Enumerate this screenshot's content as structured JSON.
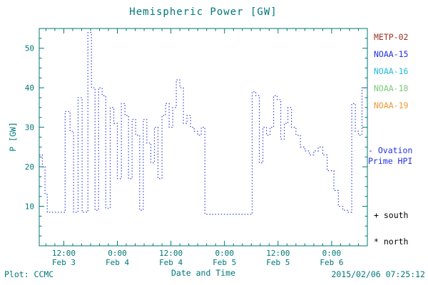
{
  "colors": {
    "background": "#ffffff",
    "axis": "#007777",
    "line": "#3344dd",
    "black": "#000000"
  },
  "legend": {
    "satellites": [
      {
        "label": "METP-02",
        "color": "#993322"
      },
      {
        "label": "NOAA-15",
        "color": "#2233dd"
      },
      {
        "label": "NOAA-16",
        "color": "#22bbdd"
      },
      {
        "label": "NOAA-18",
        "color": "#77cc77"
      },
      {
        "label": "NOAA-19",
        "color": "#ee9933"
      }
    ],
    "ovation": {
      "line1": "- Ovation",
      "line2": "Prime HPI",
      "color": "#2233dd"
    },
    "south_marker": "+ south",
    "north_marker": "* north"
  },
  "footer": {
    "credit": "Plot: CCMC",
    "timestamp": "2015/02/06 07:25:12"
  },
  "chart_data": {
    "type": "line",
    "style": "dotted-step",
    "title": "Hemispheric Power [GW]",
    "xlabel": "Date and Time",
    "ylabel": "P [GW]",
    "ylim": [
      0,
      55
    ],
    "yticks": [
      10,
      20,
      30,
      40,
      50
    ],
    "xlim": [
      6.5,
      80
    ],
    "x_unit": "hours since 2015-02-03 00:00 UT",
    "xticks": [
      {
        "hour": 12,
        "time": "12:00",
        "date": "Feb 3"
      },
      {
        "hour": 24,
        "time": "0:00",
        "date": "Feb 4"
      },
      {
        "hour": 36,
        "time": "12:00",
        "date": "Feb 4"
      },
      {
        "hour": 48,
        "time": "0:00",
        "date": "Feb 5"
      },
      {
        "hour": 60,
        "time": "12:00",
        "date": "Feb 5"
      },
      {
        "hour": 72,
        "time": "0:00",
        "date": "Feb 6"
      }
    ],
    "grid": false,
    "legend_position": "right",
    "series": [
      {
        "name": "Ovation Prime HPI",
        "color": "#3344dd",
        "points": [
          [
            6.5,
            23
          ],
          [
            7.2,
            20
          ],
          [
            7.8,
            13
          ],
          [
            8.3,
            8.5
          ],
          [
            12.3,
            34
          ],
          [
            13.4,
            29
          ],
          [
            14.2,
            8.5
          ],
          [
            15.2,
            37.5
          ],
          [
            16.1,
            8.5
          ],
          [
            17.4,
            54
          ],
          [
            18.2,
            40
          ],
          [
            19.0,
            9
          ],
          [
            19.8,
            40
          ],
          [
            20.6,
            38
          ],
          [
            21.4,
            9.5
          ],
          [
            22.4,
            35
          ],
          [
            23.2,
            31
          ],
          [
            24.0,
            17
          ],
          [
            24.9,
            36
          ],
          [
            25.7,
            33
          ],
          [
            26.5,
            17
          ],
          [
            27.3,
            32
          ],
          [
            28.1,
            28
          ],
          [
            29.0,
            9
          ],
          [
            29.8,
            32
          ],
          [
            30.6,
            26
          ],
          [
            31.5,
            21
          ],
          [
            32.3,
            30
          ],
          [
            33.1,
            17
          ],
          [
            34.0,
            33
          ],
          [
            34.8,
            36
          ],
          [
            35.6,
            30
          ],
          [
            36.4,
            35
          ],
          [
            37.2,
            42
          ],
          [
            38.0,
            40
          ],
          [
            38.8,
            31
          ],
          [
            39.6,
            33
          ],
          [
            40.4,
            30
          ],
          [
            41.2,
            29
          ],
          [
            42.0,
            28
          ],
          [
            42.8,
            30
          ],
          [
            43.6,
            8
          ],
          [
            54.2,
            39
          ],
          [
            55.0,
            38
          ],
          [
            55.8,
            21
          ],
          [
            56.6,
            30
          ],
          [
            57.4,
            28
          ],
          [
            58.2,
            30
          ],
          [
            59.0,
            38
          ],
          [
            59.8,
            37
          ],
          [
            60.6,
            27
          ],
          [
            61.4,
            31
          ],
          [
            62.2,
            35
          ],
          [
            63.0,
            30
          ],
          [
            64.0,
            28
          ],
          [
            65.0,
            25
          ],
          [
            66.0,
            24
          ],
          [
            67.0,
            23
          ],
          [
            68.0,
            24
          ],
          [
            69.0,
            25
          ],
          [
            70.0,
            23
          ],
          [
            71.0,
            19
          ],
          [
            72.5,
            14
          ],
          [
            73.5,
            10
          ],
          [
            74.5,
            9
          ],
          [
            75.5,
            8.5
          ],
          [
            76.5,
            36
          ],
          [
            77.3,
            29
          ],
          [
            78.0,
            28
          ],
          [
            78.8,
            40
          ],
          [
            80.0,
            40
          ]
        ]
      }
    ]
  }
}
